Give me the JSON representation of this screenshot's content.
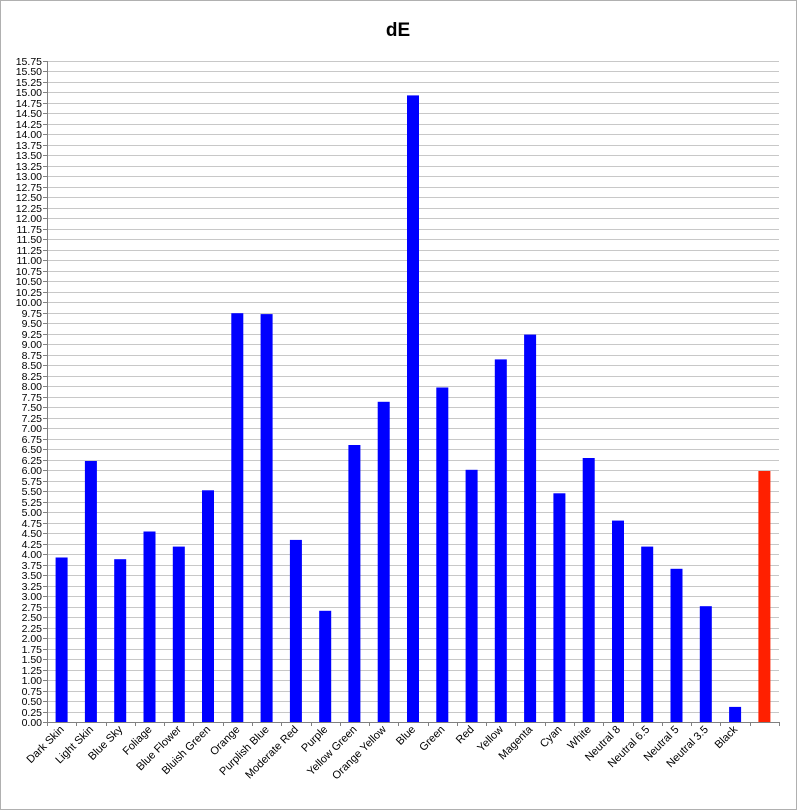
{
  "chart_data": {
    "type": "bar",
    "title": "dE",
    "xlabel": "",
    "ylabel": "",
    "ylim": [
      0,
      15.75
    ],
    "ytick_step": 0.25,
    "grid": true,
    "legend": "none",
    "categories": [
      "Dark Skin",
      "Light Skin",
      "Blue Sky",
      "Foliage",
      "Blue Flower",
      "Bluish Green",
      "Orange",
      "Purplish Blue",
      "Moderate Red",
      "Purple",
      "Yellow Green",
      "Orange Yellow",
      "Blue",
      "Green",
      "Red",
      "Yellow",
      "Magenta",
      "Cyan",
      "White",
      "Neutral 8",
      "Neutral 6.5",
      "Neutral 5",
      "Neutral 3.5",
      "Black",
      ""
    ],
    "values": [
      3.92,
      6.22,
      3.88,
      4.54,
      4.18,
      5.52,
      9.74,
      9.72,
      4.34,
      2.65,
      6.6,
      7.63,
      14.93,
      7.97,
      6.01,
      8.64,
      9.23,
      5.45,
      6.29,
      4.8,
      4.18,
      3.65,
      2.76,
      0.36,
      5.98
    ],
    "colors": [
      "#0000ff",
      "#0000ff",
      "#0000ff",
      "#0000ff",
      "#0000ff",
      "#0000ff",
      "#0000ff",
      "#0000ff",
      "#0000ff",
      "#0000ff",
      "#0000ff",
      "#0000ff",
      "#0000ff",
      "#0000ff",
      "#0000ff",
      "#0000ff",
      "#0000ff",
      "#0000ff",
      "#0000ff",
      "#0000ff",
      "#0000ff",
      "#0000ff",
      "#0000ff",
      "#0000ff",
      "#ff2000"
    ]
  }
}
